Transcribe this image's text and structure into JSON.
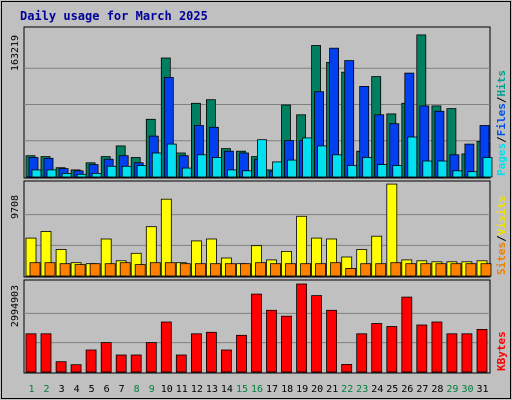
{
  "chart_data": {
    "type": "bar",
    "title": "Daily usage for March 2025",
    "categories": [
      "1",
      "2",
      "3",
      "4",
      "5",
      "6",
      "7",
      "8",
      "9",
      "10",
      "11",
      "12",
      "13",
      "14",
      "15",
      "16",
      "17",
      "18",
      "19",
      "20",
      "21",
      "22",
      "23",
      "24",
      "25",
      "26",
      "27",
      "28",
      "29",
      "30",
      "31"
    ],
    "weekend_days": [
      "1",
      "2",
      "8",
      "9",
      "15",
      "16",
      "22",
      "23",
      "29",
      "30"
    ],
    "panels": [
      {
        "name": "hits-files-pages",
        "ymax_label": "163219",
        "ylim": [
          0,
          163219
        ],
        "legend": [
          {
            "label": "Hits",
            "color": "#00a090"
          },
          {
            "label": "/",
            "color": "#000000"
          },
          {
            "label": "Files",
            "color": "#0050e8"
          },
          {
            "label": "/",
            "color": "#000000"
          },
          {
            "label": "Pages",
            "color": "#00e0f0"
          }
        ],
        "series": [
          {
            "name": "Hits",
            "color": "#008060",
            "values": [
              24000,
              23000,
              10500,
              8000,
              16000,
              23000,
              35000,
              22000,
              65000,
              134000,
              27000,
              83000,
              87000,
              32000,
              29000,
              23000,
              8000,
              81000,
              70000,
              148000,
              129000,
              118000,
              29000,
              113000,
              71000,
              83000,
              160000,
              80000,
              77000,
              26000,
              40000
            ]
          },
          {
            "name": "Files",
            "color": "#0040f0",
            "values": [
              22000,
              21000,
              9500,
              7000,
              14000,
              20000,
              24000,
              16000,
              46000,
              112000,
              24000,
              58000,
              56000,
              29000,
              27000,
              20000,
              6500,
              41000,
              41000,
              96000,
              145000,
              131000,
              102000,
              70000,
              60000,
              117000,
              80000,
              74000,
              25000,
              37000,
              58000
            ]
          },
          {
            "name": "Pages",
            "color": "#00e0f0",
            "values": [
              8000,
              8000,
              4000,
              3000,
              4000,
              12000,
              12000,
              13000,
              27000,
              37000,
              10000,
              25000,
              22000,
              8000,
              7000,
              42000,
              17000,
              19000,
              44000,
              35000,
              25000,
              13000,
              22000,
              14000,
              13000,
              45000,
              18000,
              18000,
              7000,
              6000,
              22000
            ]
          }
        ]
      },
      {
        "name": "visits-sites",
        "ymax_label": "9708",
        "ylim": [
          0,
          9708
        ],
        "legend": [
          {
            "label": "Visits",
            "color": "#f0e000"
          },
          {
            "label": "/",
            "color": "#000000"
          },
          {
            "label": "Sites",
            "color": "#f08000"
          }
        ],
        "series": [
          {
            "name": "Visits",
            "color": "#ffff00",
            "values": [
              4000,
              4700,
              2800,
              1400,
              1300,
              3900,
              1600,
              2400,
              5200,
              8100,
              1400,
              3700,
              3900,
              1900,
              1300,
              3200,
              1700,
              2600,
              6300,
              4000,
              3900,
              2000,
              2800,
              4200,
              9700,
              1700,
              1600,
              1500,
              1500,
              1500,
              1600
            ]
          },
          {
            "name": "Sites",
            "color": "#ff8000",
            "values": [
              1400,
              1400,
              1300,
              1200,
              1300,
              1300,
              1400,
              1200,
              1400,
              1400,
              1300,
              1300,
              1300,
              1300,
              1300,
              1400,
              1300,
              1300,
              1300,
              1300,
              1400,
              800,
              1300,
              1300,
              1400,
              1300,
              1300,
              1300,
              1300,
              1300,
              1300
            ]
          }
        ]
      },
      {
        "name": "kbytes",
        "ymax_label": "2994903",
        "ylim": [
          0,
          2994903
        ],
        "legend": [
          {
            "label": "KBytes",
            "color": "#ff0000"
          }
        ],
        "series": [
          {
            "name": "KBytes",
            "color": "#ff0000",
            "values": [
              1300000,
              1300000,
              350000,
              250000,
              750000,
              1000000,
              580000,
              580000,
              1000000,
              1700000,
              580000,
              1300000,
              1350000,
              750000,
              1250000,
              2650000,
              2100000,
              1900000,
              2994903,
              2600000,
              2100000,
              260000,
              1300000,
              1650000,
              1550000,
              2550000,
              1600000,
              1700000,
              1300000,
              1300000,
              1450000
            ]
          }
        ]
      }
    ]
  }
}
